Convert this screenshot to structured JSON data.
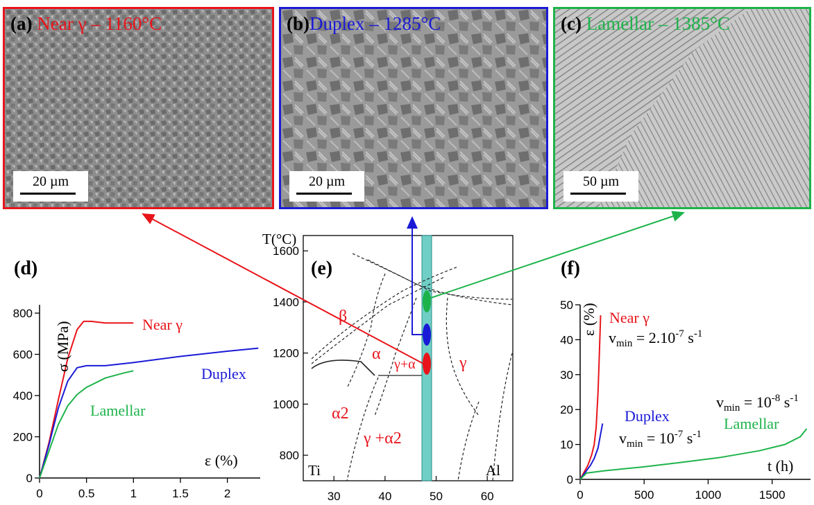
{
  "micrographs": [
    {
      "label": "(a)",
      "title": "Near γ – 1160°C",
      "scale": "20 µm",
      "color": "#e8141b"
    },
    {
      "label": "(b)",
      "title": "Duplex  – 1285°C",
      "scale": "20 µm",
      "color": "#1a1ad6"
    },
    {
      "label": "(c)",
      "title": "Lamellar  – 1385°C",
      "scale": "50 µm",
      "color": "#1db34a"
    }
  ],
  "colors": {
    "red": "#e8141b",
    "blue": "#1a1ad6",
    "green": "#1db34a",
    "teal": "#6fcfc6"
  },
  "chart_data": [
    {
      "panel": "(d)",
      "type": "line",
      "xlabel": "ε (%)",
      "ylabel": "σ (MPa)",
      "xlim": [
        0,
        2.35
      ],
      "ylim": [
        0,
        800
      ],
      "xticks": [
        "0",
        "0.5",
        "1",
        "1.5",
        "2"
      ],
      "yticks": [
        "0",
        "200",
        "400",
        "600",
        "800"
      ],
      "series": [
        {
          "name": "Near γ",
          "color": "#e8141b",
          "x": [
            0,
            0.1,
            0.2,
            0.3,
            0.4,
            0.47,
            0.55,
            0.7,
            0.9,
            1.0
          ],
          "y": [
            0,
            170,
            380,
            580,
            720,
            760,
            760,
            752,
            752,
            752
          ]
        },
        {
          "name": "Duplex",
          "color": "#1a1ad6",
          "x": [
            0,
            0.1,
            0.2,
            0.3,
            0.4,
            0.5,
            0.7,
            1.0,
            1.5,
            2.0,
            2.33
          ],
          "y": [
            0,
            160,
            340,
            470,
            535,
            545,
            545,
            560,
            590,
            615,
            630
          ]
        },
        {
          "name": "Lamellar",
          "color": "#1db34a",
          "x": [
            0,
            0.1,
            0.2,
            0.3,
            0.4,
            0.5,
            0.7,
            0.9,
            1.0
          ],
          "y": [
            0,
            130,
            260,
            350,
            405,
            440,
            485,
            510,
            520
          ]
        }
      ]
    },
    {
      "panel": "(e)",
      "type": "diagram",
      "ylabel": "T(°C)",
      "xlim": [
        24,
        65
      ],
      "ylim": [
        700,
        1660
      ],
      "xticks": [
        "30",
        "40",
        "50",
        "60"
      ],
      "yticks": [
        "800",
        "1000",
        "1200",
        "1400",
        "1600"
      ],
      "left_label": "Ti",
      "right_label": "Al",
      "phases": {
        "beta": "β",
        "alpha": "α",
        "gamma_alpha": "γ+α",
        "gamma": "γ",
        "alpha2": "α2",
        "gamma_alpha2": "γ +α2"
      }
    },
    {
      "panel": "(f)",
      "type": "line",
      "xlabel": "t (h)",
      "ylabel": "ε (%)",
      "xlim": [
        0,
        1800
      ],
      "ylim": [
        0,
        50
      ],
      "xticks": [
        "0",
        "500",
        "1000",
        "1500"
      ],
      "yticks": [
        "0",
        "10",
        "20",
        "30",
        "40",
        "50"
      ],
      "series": [
        {
          "name": "Near γ",
          "color": "#e8141b",
          "x": [
            0,
            30,
            60,
            90,
            110,
            125,
            140,
            150,
            160
          ],
          "y": [
            0,
            2,
            4,
            7,
            10,
            15,
            25,
            36,
            47
          ]
        },
        {
          "name": "Duplex",
          "color": "#1a1ad6",
          "x": [
            0,
            40,
            80,
            110,
            140,
            160,
            175
          ],
          "y": [
            0,
            2,
            4,
            6,
            9,
            13,
            16
          ]
        },
        {
          "name": "Lamellar",
          "color": "#1db34a",
          "x": [
            0,
            50,
            200,
            500,
            800,
            1100,
            1400,
            1600,
            1720,
            1770
          ],
          "y": [
            0,
            1.8,
            2.5,
            3.6,
            4.9,
            6.3,
            8.2,
            10,
            12.2,
            14.5
          ]
        }
      ],
      "annotations": [
        {
          "series": "Near γ",
          "text": "v",
          "sub": "min",
          "rest": " = 2.10",
          "sup": "-7",
          "unit": " s",
          "unit_sup": "-1"
        },
        {
          "series": "Duplex",
          "text": "v",
          "sub": "min",
          "rest": " = 10",
          "sup": "-7",
          "unit": " s",
          "unit_sup": "-1"
        },
        {
          "series": "Lamellar",
          "text": "v",
          "sub": "min",
          "rest": " = 10",
          "sup": "-8",
          "unit": " s",
          "unit_sup": "-1"
        }
      ]
    }
  ]
}
